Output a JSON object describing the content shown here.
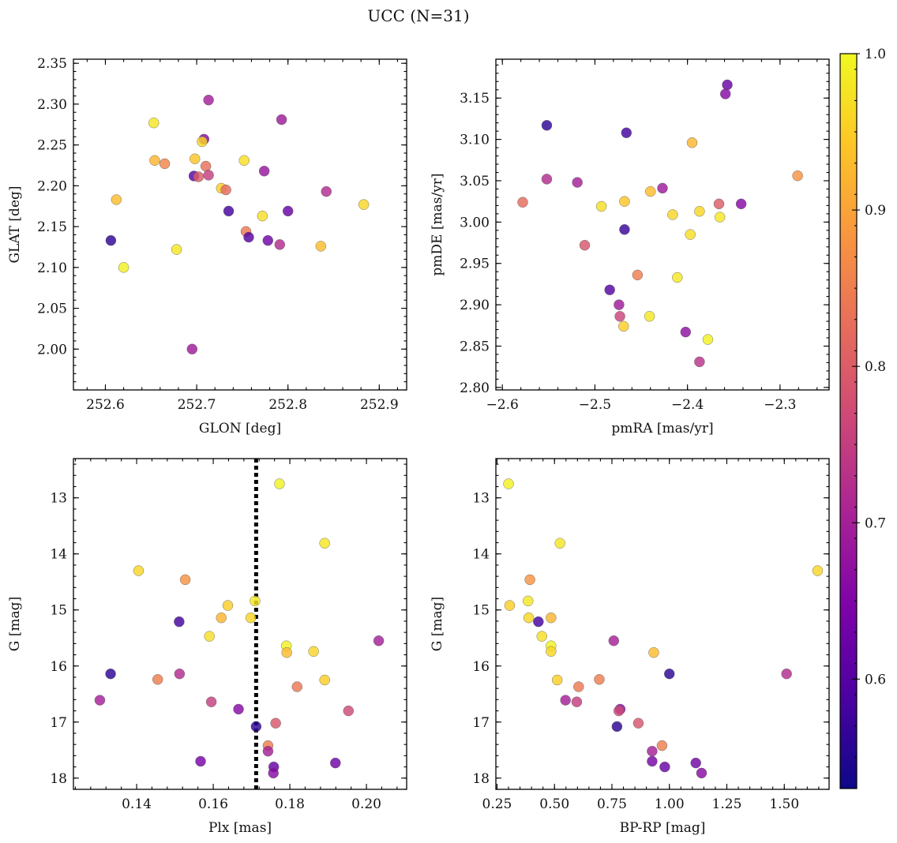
{
  "title": "UCC (N=31)",
  "colorbar": {
    "min": 0.53,
    "max": 1.0,
    "colormap": "plasma",
    "ticks": [
      0.6,
      0.7,
      0.8,
      0.9,
      1.0
    ],
    "tick_labels": [
      "0.6",
      "0.7",
      "0.8",
      "0.9",
      "1.0"
    ]
  },
  "chart_data": [
    {
      "type": "scatter",
      "xlabel": "GLON [deg]",
      "ylabel": "GLAT [deg]",
      "xlim": [
        252.565,
        252.93
      ],
      "ylim": [
        1.95,
        2.355
      ],
      "xticks": [
        252.6,
        252.7,
        252.8,
        252.9
      ],
      "xtick_labels": [
        "252.6",
        "252.7",
        "252.8",
        "252.9"
      ],
      "yticks": [
        2.0,
        2.05,
        2.1,
        2.15,
        2.2,
        2.25,
        2.3,
        2.35
      ],
      "ytick_labels": [
        "2.00",
        "2.05",
        "2.10",
        "2.15",
        "2.20",
        "2.25",
        "2.30",
        "2.35"
      ],
      "y_inverted": false,
      "points": [
        {
          "x": 252.713,
          "y": 2.305,
          "c": 0.7
        },
        {
          "x": 252.793,
          "y": 2.281,
          "c": 0.69
        },
        {
          "x": 252.653,
          "y": 2.277,
          "c": 0.98
        },
        {
          "x": 252.708,
          "y": 2.257,
          "c": 0.66
        },
        {
          "x": 252.706,
          "y": 2.254,
          "c": 0.96
        },
        {
          "x": 252.698,
          "y": 2.233,
          "c": 0.94
        },
        {
          "x": 252.654,
          "y": 2.231,
          "c": 0.92
        },
        {
          "x": 252.752,
          "y": 2.231,
          "c": 0.97
        },
        {
          "x": 252.665,
          "y": 2.227,
          "c": 0.86
        },
        {
          "x": 252.71,
          "y": 2.224,
          "c": 0.83
        },
        {
          "x": 252.774,
          "y": 2.218,
          "c": 0.68
        },
        {
          "x": 252.713,
          "y": 2.213,
          "c": 0.75
        },
        {
          "x": 252.697,
          "y": 2.212,
          "c": 0.6
        },
        {
          "x": 252.702,
          "y": 2.211,
          "c": 0.8
        },
        {
          "x": 252.727,
          "y": 2.197,
          "c": 0.95
        },
        {
          "x": 252.732,
          "y": 2.195,
          "c": 0.82
        },
        {
          "x": 252.842,
          "y": 2.193,
          "c": 0.72
        },
        {
          "x": 252.612,
          "y": 2.183,
          "c": 0.93
        },
        {
          "x": 252.883,
          "y": 2.177,
          "c": 0.96
        },
        {
          "x": 252.735,
          "y": 2.169,
          "c": 0.58
        },
        {
          "x": 252.8,
          "y": 2.169,
          "c": 0.62
        },
        {
          "x": 252.772,
          "y": 2.163,
          "c": 0.97
        },
        {
          "x": 252.754,
          "y": 2.144,
          "c": 0.84
        },
        {
          "x": 252.757,
          "y": 2.137,
          "c": 0.6
        },
        {
          "x": 252.606,
          "y": 2.133,
          "c": 0.56
        },
        {
          "x": 252.778,
          "y": 2.133,
          "c": 0.63
        },
        {
          "x": 252.791,
          "y": 2.128,
          "c": 0.72
        },
        {
          "x": 252.836,
          "y": 2.126,
          "c": 0.93
        },
        {
          "x": 252.678,
          "y": 2.122,
          "c": 0.98
        },
        {
          "x": 252.62,
          "y": 2.1,
          "c": 0.99
        },
        {
          "x": 252.695,
          "y": 2.0,
          "c": 0.69
        }
      ]
    },
    {
      "type": "scatter",
      "xlabel": "pmRA [mas/yr]",
      "ylabel": "pmDE [mas/yr]",
      "xlim": [
        -2.607,
        -2.247
      ],
      "ylim": [
        2.797,
        3.197
      ],
      "xticks": [
        -2.6,
        -2.5,
        -2.4,
        -2.3
      ],
      "xtick_labels": [
        "−2.6",
        "−2.5",
        "−2.4",
        "−2.3"
      ],
      "yticks": [
        2.8,
        2.85,
        2.9,
        2.95,
        3.0,
        3.05,
        3.1,
        3.15
      ],
      "ytick_labels": [
        "2.80",
        "2.85",
        "2.90",
        "2.95",
        "3.00",
        "3.05",
        "3.10",
        "3.15"
      ],
      "y_inverted": false,
      "points": [
        {
          "x": -2.357,
          "y": 3.166,
          "c": 0.62
        },
        {
          "x": -2.359,
          "y": 3.155,
          "c": 0.66
        },
        {
          "x": -2.552,
          "y": 3.117,
          "c": 0.56
        },
        {
          "x": -2.466,
          "y": 3.108,
          "c": 0.58
        },
        {
          "x": -2.395,
          "y": 3.096,
          "c": 0.92
        },
        {
          "x": -2.281,
          "y": 3.056,
          "c": 0.88
        },
        {
          "x": -2.552,
          "y": 3.052,
          "c": 0.72
        },
        {
          "x": -2.519,
          "y": 3.048,
          "c": 0.7
        },
        {
          "x": -2.427,
          "y": 3.041,
          "c": 0.69
        },
        {
          "x": -2.44,
          "y": 3.037,
          "c": 0.93
        },
        {
          "x": -2.468,
          "y": 3.025,
          "c": 0.94
        },
        {
          "x": -2.578,
          "y": 3.024,
          "c": 0.82
        },
        {
          "x": -2.366,
          "y": 3.022,
          "c": 0.8
        },
        {
          "x": -2.342,
          "y": 3.022,
          "c": 0.66
        },
        {
          "x": -2.493,
          "y": 3.019,
          "c": 0.97
        },
        {
          "x": -2.387,
          "y": 3.013,
          "c": 0.96
        },
        {
          "x": -2.416,
          "y": 3.009,
          "c": 0.96
        },
        {
          "x": -2.365,
          "y": 3.006,
          "c": 0.98
        },
        {
          "x": -2.468,
          "y": 2.991,
          "c": 0.57
        },
        {
          "x": -2.397,
          "y": 2.985,
          "c": 0.97
        },
        {
          "x": -2.511,
          "y": 2.972,
          "c": 0.79
        },
        {
          "x": -2.454,
          "y": 2.936,
          "c": 0.85
        },
        {
          "x": -2.411,
          "y": 2.933,
          "c": 0.98
        },
        {
          "x": -2.484,
          "y": 2.918,
          "c": 0.6
        },
        {
          "x": -2.474,
          "y": 2.9,
          "c": 0.69
        },
        {
          "x": -2.473,
          "y": 2.886,
          "c": 0.76
        },
        {
          "x": -2.441,
          "y": 2.886,
          "c": 0.98
        },
        {
          "x": -2.469,
          "y": 2.874,
          "c": 0.95
        },
        {
          "x": -2.402,
          "y": 2.867,
          "c": 0.67
        },
        {
          "x": -2.378,
          "y": 2.858,
          "c": 0.99
        },
        {
          "x": -2.387,
          "y": 2.831,
          "c": 0.73
        }
      ]
    },
    {
      "type": "scatter",
      "xlabel": "Plx [mas]",
      "ylabel": "G [mag]",
      "xlim": [
        0.1235,
        0.2105
      ],
      "ylim": [
        18.2,
        12.3
      ],
      "xticks": [
        0.14,
        0.16,
        0.18,
        0.2
      ],
      "xtick_labels": [
        "0.14",
        "0.16",
        "0.18",
        "0.20"
      ],
      "yticks": [
        13,
        14,
        15,
        16,
        17,
        18
      ],
      "ytick_labels": [
        "13",
        "14",
        "15",
        "16",
        "17",
        "18"
      ],
      "y_inverted": true,
      "vline": {
        "x": 0.1712,
        "style": "dotted"
      },
      "points": [
        {
          "x": 0.1773,
          "y": 12.75,
          "c": 0.99
        },
        {
          "x": 0.1891,
          "y": 13.81,
          "c": 0.98
        },
        {
          "x": 0.1405,
          "y": 14.3,
          "c": 0.96
        },
        {
          "x": 0.1527,
          "y": 14.46,
          "c": 0.88
        },
        {
          "x": 0.1709,
          "y": 14.84,
          "c": 0.98
        },
        {
          "x": 0.1638,
          "y": 14.92,
          "c": 0.95
        },
        {
          "x": 0.1621,
          "y": 15.14,
          "c": 0.92
        },
        {
          "x": 0.1698,
          "y": 15.14,
          "c": 0.96
        },
        {
          "x": 0.1511,
          "y": 15.21,
          "c": 0.58
        },
        {
          "x": 0.159,
          "y": 15.47,
          "c": 0.97
        },
        {
          "x": 0.2032,
          "y": 15.55,
          "c": 0.7
        },
        {
          "x": 0.1791,
          "y": 15.64,
          "c": 0.99
        },
        {
          "x": 0.1862,
          "y": 15.74,
          "c": 0.96
        },
        {
          "x": 0.1792,
          "y": 15.76,
          "c": 0.93
        },
        {
          "x": 0.1332,
          "y": 16.14,
          "c": 0.56
        },
        {
          "x": 0.1512,
          "y": 16.14,
          "c": 0.72
        },
        {
          "x": 0.1455,
          "y": 16.24,
          "c": 0.85
        },
        {
          "x": 0.1891,
          "y": 16.25,
          "c": 0.95
        },
        {
          "x": 0.1819,
          "y": 16.37,
          "c": 0.84
        },
        {
          "x": 0.1304,
          "y": 16.61,
          "c": 0.7
        },
        {
          "x": 0.1595,
          "y": 16.64,
          "c": 0.75
        },
        {
          "x": 0.1666,
          "y": 16.77,
          "c": 0.66
        },
        {
          "x": 0.1953,
          "y": 16.8,
          "c": 0.77
        },
        {
          "x": 0.1763,
          "y": 17.02,
          "c": 0.79
        },
        {
          "x": 0.1712,
          "y": 17.08,
          "c": 0.56
        },
        {
          "x": 0.1743,
          "y": 17.42,
          "c": 0.85
        },
        {
          "x": 0.1743,
          "y": 17.52,
          "c": 0.7
        },
        {
          "x": 0.1567,
          "y": 17.7,
          "c": 0.64
        },
        {
          "x": 0.1919,
          "y": 17.73,
          "c": 0.63
        },
        {
          "x": 0.1758,
          "y": 17.8,
          "c": 0.62
        },
        {
          "x": 0.1757,
          "y": 17.91,
          "c": 0.66
        }
      ]
    },
    {
      "type": "scatter",
      "xlabel": "BP-RP [mag]",
      "ylabel": "G [mag]",
      "xlim": [
        0.245,
        1.695
      ],
      "ylim": [
        18.2,
        12.3
      ],
      "xticks": [
        0.25,
        0.5,
        0.75,
        1.0,
        1.25,
        1.5
      ],
      "xtick_labels": [
        "0.25",
        "0.50",
        "0.75",
        "1.00",
        "1.25",
        "1.50"
      ],
      "yticks": [
        13,
        14,
        15,
        16,
        17,
        18
      ],
      "ytick_labels": [
        "13",
        "14",
        "15",
        "16",
        "17",
        "18"
      ],
      "y_inverted": true,
      "points": [
        {
          "x": 0.3,
          "y": 12.75,
          "c": 0.99
        },
        {
          "x": 0.524,
          "y": 13.81,
          "c": 0.98
        },
        {
          "x": 1.645,
          "y": 14.3,
          "c": 0.96
        },
        {
          "x": 0.393,
          "y": 14.46,
          "c": 0.88
        },
        {
          "x": 0.385,
          "y": 14.84,
          "c": 0.98
        },
        {
          "x": 0.305,
          "y": 14.92,
          "c": 0.95
        },
        {
          "x": 0.485,
          "y": 15.14,
          "c": 0.92
        },
        {
          "x": 0.388,
          "y": 15.14,
          "c": 0.96
        },
        {
          "x": 0.43,
          "y": 15.21,
          "c": 0.58
        },
        {
          "x": 0.445,
          "y": 15.47,
          "c": 0.97
        },
        {
          "x": 0.758,
          "y": 15.55,
          "c": 0.7
        },
        {
          "x": 0.485,
          "y": 15.64,
          "c": 0.99
        },
        {
          "x": 0.485,
          "y": 15.74,
          "c": 0.96
        },
        {
          "x": 0.932,
          "y": 15.76,
          "c": 0.93
        },
        {
          "x": 1.0,
          "y": 16.14,
          "c": 0.56
        },
        {
          "x": 1.51,
          "y": 16.14,
          "c": 0.72
        },
        {
          "x": 0.695,
          "y": 16.24,
          "c": 0.85
        },
        {
          "x": 0.512,
          "y": 16.25,
          "c": 0.95
        },
        {
          "x": 0.605,
          "y": 16.37,
          "c": 0.84
        },
        {
          "x": 0.548,
          "y": 16.61,
          "c": 0.7
        },
        {
          "x": 0.597,
          "y": 16.64,
          "c": 0.75
        },
        {
          "x": 0.786,
          "y": 16.77,
          "c": 0.66
        },
        {
          "x": 0.78,
          "y": 16.8,
          "c": 0.77
        },
        {
          "x": 0.865,
          "y": 17.02,
          "c": 0.79
        },
        {
          "x": 0.772,
          "y": 17.08,
          "c": 0.56
        },
        {
          "x": 0.968,
          "y": 17.42,
          "c": 0.85
        },
        {
          "x": 0.925,
          "y": 17.52,
          "c": 0.7
        },
        {
          "x": 0.925,
          "y": 17.7,
          "c": 0.64
        },
        {
          "x": 1.115,
          "y": 17.73,
          "c": 0.63
        },
        {
          "x": 0.98,
          "y": 17.8,
          "c": 0.62
        },
        {
          "x": 1.14,
          "y": 17.91,
          "c": 0.66
        }
      ]
    }
  ]
}
